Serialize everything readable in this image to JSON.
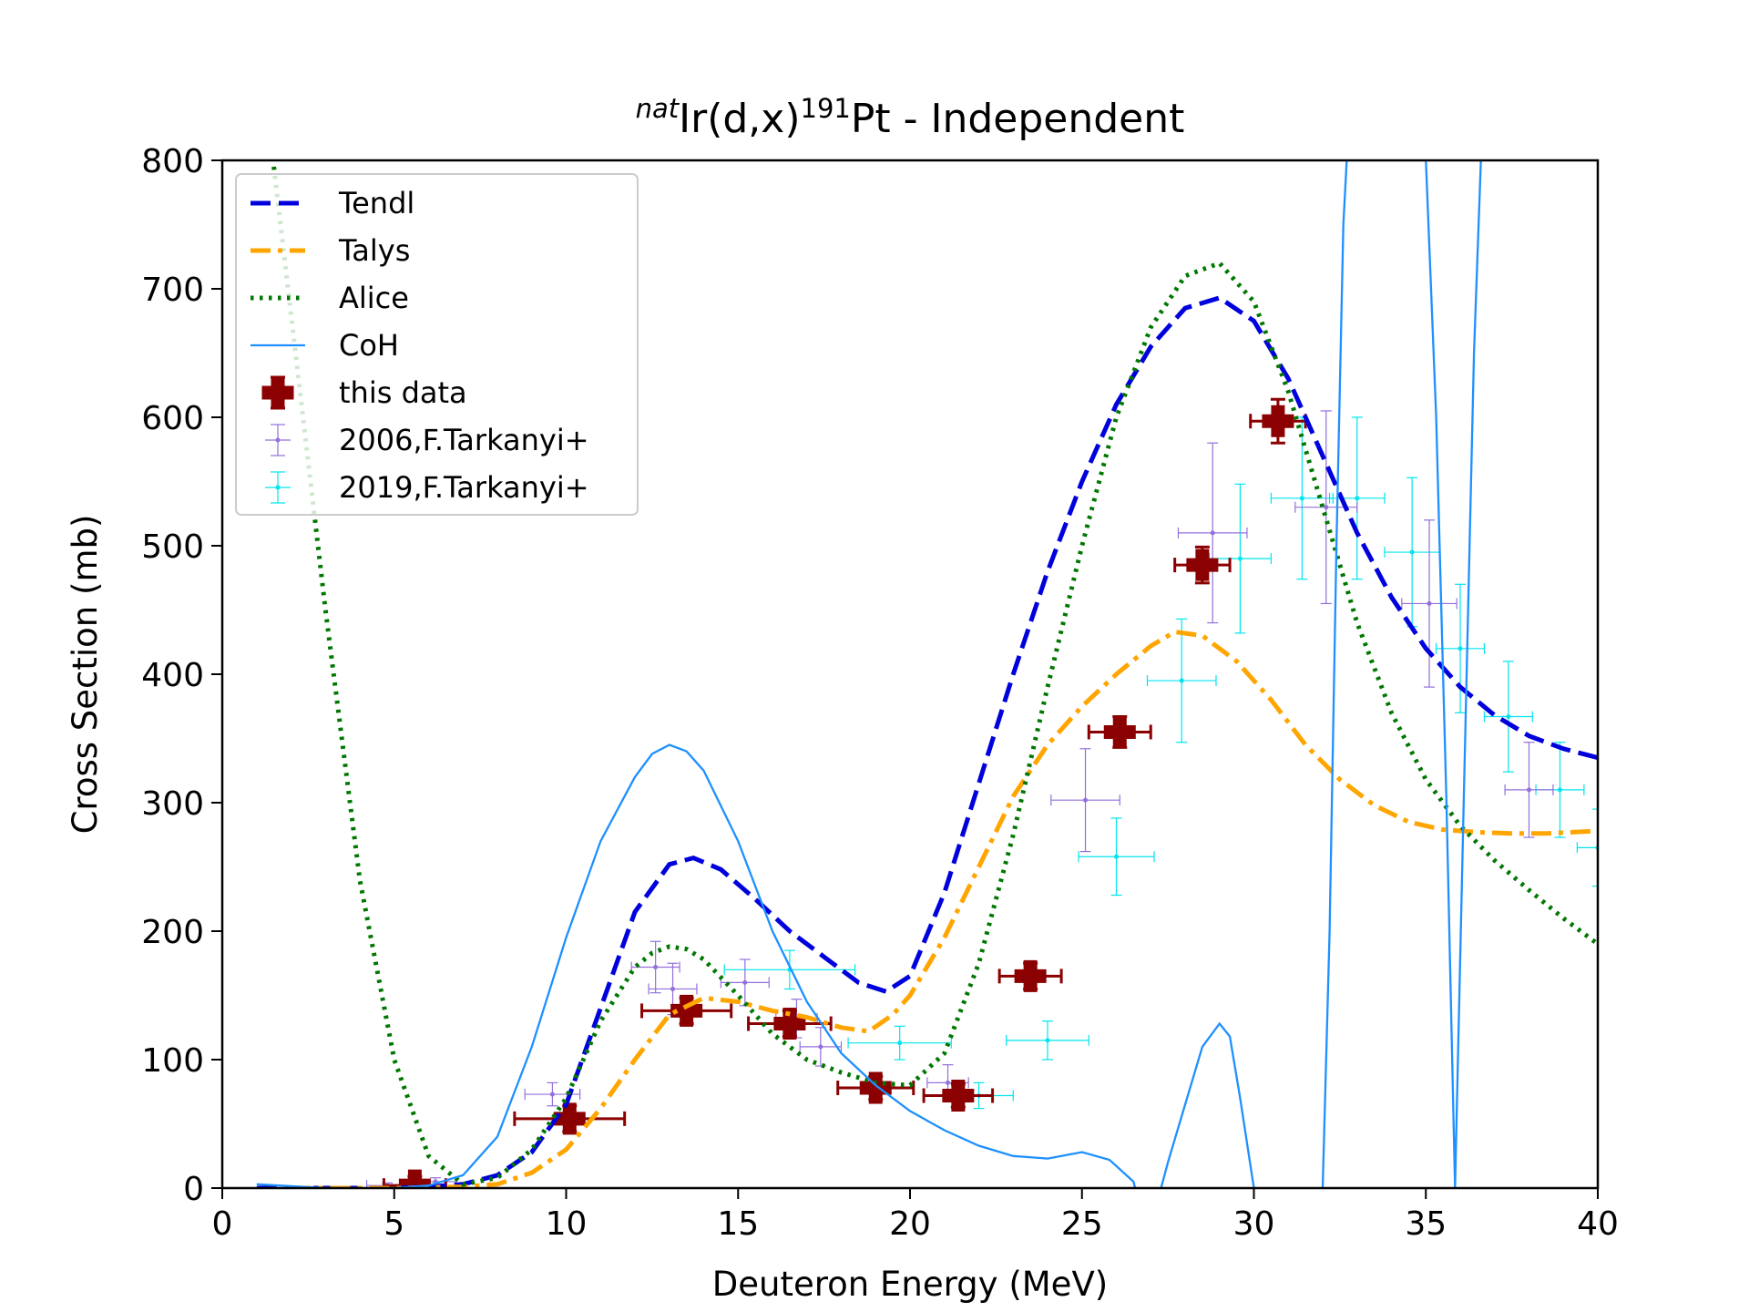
{
  "chart_data": {
    "type": "line",
    "title": {
      "prefix_sup": "nat",
      "main": "Ir(d,x)",
      "mass_sup": "191",
      "suffix": "Pt - Independent"
    },
    "xlabel": "Deuteron Energy (MeV)",
    "ylabel": "Cross Section (mb)",
    "xlim": [
      0,
      40
    ],
    "ylim": [
      0,
      800
    ],
    "xticks": [
      0,
      5,
      10,
      15,
      20,
      25,
      30,
      35,
      40
    ],
    "yticks": [
      0,
      100,
      200,
      300,
      400,
      500,
      600,
      700,
      800
    ],
    "grid": false,
    "legend_position": "top-left",
    "series": [
      {
        "name": "Tendl",
        "kind": "line",
        "style": "dashed",
        "color": "#0000dd",
        "x": [
          1,
          3,
          5,
          6,
          7,
          8,
          9,
          10,
          11,
          12,
          13,
          13.7,
          14.5,
          15.5,
          16.5,
          17.5,
          18.5,
          19.3,
          20,
          21,
          22,
          23,
          24,
          25,
          26,
          27,
          28,
          29,
          30,
          31,
          32,
          33,
          34,
          35,
          36,
          37,
          38,
          39,
          40
        ],
        "y": [
          0,
          0,
          0,
          1,
          3,
          10,
          28,
          65,
          140,
          215,
          252,
          257,
          248,
          225,
          200,
          180,
          160,
          153,
          165,
          230,
          315,
          400,
          480,
          550,
          610,
          655,
          685,
          693,
          675,
          630,
          570,
          510,
          460,
          420,
          390,
          368,
          352,
          342,
          335
        ]
      },
      {
        "name": "Talys",
        "kind": "line",
        "style": "dashdot",
        "color": "#ffa500",
        "x": [
          2,
          5,
          7,
          8,
          9,
          10,
          11,
          12,
          13,
          14,
          15,
          16,
          17,
          18,
          18.8,
          19.5,
          20,
          21,
          22,
          23,
          24,
          25,
          26,
          27,
          27.7,
          28.5,
          29.5,
          30.5,
          31.5,
          32.5,
          33.5,
          34.5,
          35.5,
          36.5,
          37.5,
          38.5,
          40
        ],
        "y": [
          0,
          0,
          1,
          3,
          12,
          30,
          62,
          100,
          135,
          148,
          145,
          138,
          133,
          125,
          122,
          135,
          150,
          195,
          250,
          305,
          345,
          375,
          400,
          422,
          433,
          430,
          410,
          380,
          345,
          318,
          298,
          285,
          279,
          277,
          276,
          276,
          278
        ]
      },
      {
        "name": "Alice",
        "kind": "line",
        "style": "dotted",
        "color": "#007700",
        "x": [
          1.5,
          2,
          3,
          4,
          5,
          6,
          7,
          8,
          9,
          10,
          11,
          12,
          12.5,
          13,
          13.5,
          14,
          15,
          16,
          17,
          18,
          19,
          20,
          21,
          22,
          23,
          24,
          25,
          26,
          27,
          28,
          29,
          30,
          31,
          32,
          33,
          34,
          35,
          36,
          37,
          38,
          39,
          40
        ],
        "y": [
          795,
          680,
          450,
          240,
          100,
          25,
          3,
          8,
          30,
          70,
          130,
          172,
          183,
          188,
          186,
          178,
          150,
          120,
          100,
          90,
          82,
          80,
          105,
          175,
          275,
          390,
          500,
          600,
          670,
          710,
          720,
          690,
          620,
          530,
          440,
          370,
          318,
          282,
          255,
          232,
          210,
          190
        ]
      },
      {
        "name": "CoH",
        "kind": "line",
        "style": "solid",
        "color": "#1e90ff",
        "x": [
          1,
          3,
          5,
          6,
          7,
          8,
          9,
          10,
          11,
          12,
          12.5,
          13,
          13.5,
          14,
          15,
          16,
          17,
          18,
          19,
          20,
          21,
          22,
          23,
          24,
          25,
          25.8,
          26.5,
          26.9,
          27.5,
          28,
          28.5,
          29,
          29.3,
          29.6,
          30,
          30.2,
          31.8,
          32,
          32.2,
          32.4,
          32.6,
          32.7,
          35,
          35.3,
          35.6,
          35.85,
          36.1,
          36.4,
          36.6
        ],
        "y": [
          3,
          0,
          0,
          2,
          10,
          40,
          110,
          195,
          270,
          320,
          338,
          345,
          340,
          325,
          270,
          200,
          145,
          105,
          80,
          60,
          45,
          33,
          25,
          23,
          28,
          22,
          5,
          -40,
          20,
          65,
          110,
          128,
          118,
          70,
          0,
          -40,
          -40,
          0,
          200,
          500,
          750,
          800,
          800,
          600,
          300,
          0,
          300,
          650,
          800
        ]
      },
      {
        "name": "this data",
        "kind": "errorbar",
        "marker": "P",
        "color": "#8b0000",
        "points": [
          {
            "x": 5.6,
            "y": 2,
            "xerr": 0.9,
            "yerr": 7
          },
          {
            "x": 10.1,
            "y": 54,
            "xerr": 1.6,
            "yerr": 10
          },
          {
            "x": 13.5,
            "y": 138,
            "xerr": 1.3,
            "yerr": 10
          },
          {
            "x": 16.5,
            "y": 128,
            "xerr": 1.2,
            "yerr": 10
          },
          {
            "x": 19.0,
            "y": 78,
            "xerr": 1.1,
            "yerr": 9
          },
          {
            "x": 21.4,
            "y": 72,
            "xerr": 1.0,
            "yerr": 9
          },
          {
            "x": 23.5,
            "y": 165,
            "xerr": 0.9,
            "yerr": 10
          },
          {
            "x": 26.1,
            "y": 355,
            "xerr": 0.9,
            "yerr": 12
          },
          {
            "x": 28.5,
            "y": 485,
            "xerr": 0.8,
            "yerr": 14
          },
          {
            "x": 30.7,
            "y": 597,
            "xerr": 0.8,
            "yerr": 17
          }
        ]
      },
      {
        "name": "2006,F.Tarkanyi+",
        "kind": "errorbar",
        "marker": "o",
        "color": "#9370db",
        "points": [
          {
            "x": 4.8,
            "y": 2,
            "xerr": 0.6,
            "yerr": 2
          },
          {
            "x": 6.2,
            "y": 5,
            "xerr": 0.6,
            "yerr": 3
          },
          {
            "x": 9.6,
            "y": 73,
            "xerr": 0.8,
            "yerr": 9
          },
          {
            "x": 12.6,
            "y": 172,
            "xerr": 0.7,
            "yerr": 20
          },
          {
            "x": 13.1,
            "y": 155,
            "xerr": 0.7,
            "yerr": 20
          },
          {
            "x": 15.2,
            "y": 160,
            "xerr": 0.7,
            "yerr": 18
          },
          {
            "x": 16.7,
            "y": 132,
            "xerr": 0.6,
            "yerr": 15
          },
          {
            "x": 17.4,
            "y": 110,
            "xerr": 0.6,
            "yerr": 15
          },
          {
            "x": 21.1,
            "y": 82,
            "xerr": 0.6,
            "yerr": 14
          },
          {
            "x": 25.1,
            "y": 302,
            "xerr": 1.0,
            "yerr": 40
          },
          {
            "x": 28.8,
            "y": 510,
            "xerr": 1.0,
            "yerr": 70
          },
          {
            "x": 32.1,
            "y": 530,
            "xerr": 0.9,
            "yerr": 75
          },
          {
            "x": 35.1,
            "y": 455,
            "xerr": 0.8,
            "yerr": 65
          },
          {
            "x": 38.0,
            "y": 310,
            "xerr": 0.7,
            "yerr": 37
          }
        ]
      },
      {
        "name": "2019,F.Tarkanyi+",
        "kind": "errorbar",
        "marker": "o",
        "color": "#00e5ee",
        "points": [
          {
            "x": 16.5,
            "y": 170,
            "xerr": 1.9,
            "yerr": 15
          },
          {
            "x": 19.7,
            "y": 113,
            "xerr": 1.5,
            "yerr": 13
          },
          {
            "x": 22.0,
            "y": 72,
            "xerr": 1.0,
            "yerr": 10
          },
          {
            "x": 24.0,
            "y": 115,
            "xerr": 1.2,
            "yerr": 15
          },
          {
            "x": 26.0,
            "y": 258,
            "xerr": 1.1,
            "yerr": 30
          },
          {
            "x": 27.9,
            "y": 395,
            "xerr": 1.0,
            "yerr": 48
          },
          {
            "x": 29.6,
            "y": 490,
            "xerr": 0.9,
            "yerr": 58
          },
          {
            "x": 31.4,
            "y": 537,
            "xerr": 0.9,
            "yerr": 63
          },
          {
            "x": 33.0,
            "y": 537,
            "xerr": 0.8,
            "yerr": 63
          },
          {
            "x": 34.6,
            "y": 495,
            "xerr": 0.8,
            "yerr": 58
          },
          {
            "x": 36.0,
            "y": 420,
            "xerr": 0.7,
            "yerr": 50
          },
          {
            "x": 37.4,
            "y": 367,
            "xerr": 0.7,
            "yerr": 43
          },
          {
            "x": 38.9,
            "y": 310,
            "xerr": 0.7,
            "yerr": 37
          },
          {
            "x": 40.0,
            "y": 265,
            "xerr": 0.6,
            "yerr": 30
          }
        ]
      }
    ]
  }
}
